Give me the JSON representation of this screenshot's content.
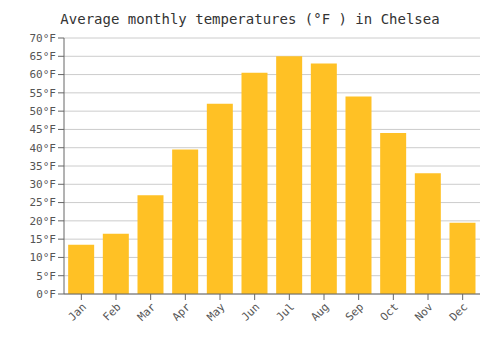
{
  "chart_data": {
    "type": "bar",
    "title": "Average monthly temperatures (°F ) in Chelsea",
    "categories": [
      "Jan",
      "Feb",
      "Mar",
      "Apr",
      "May",
      "Jun",
      "Jul",
      "Aug",
      "Sep",
      "Oct",
      "Nov",
      "Dec"
    ],
    "values": [
      13.5,
      16.5,
      27,
      39.5,
      52,
      60.5,
      65,
      63,
      54,
      44,
      33,
      19.5
    ],
    "color": "#FFC125",
    "ylim": [
      0,
      70
    ],
    "yticks": [
      {
        "value": 0,
        "label": "0°F"
      },
      {
        "value": 5,
        "label": "5°F"
      },
      {
        "value": 10,
        "label": "10°F"
      },
      {
        "value": 15,
        "label": "15°F"
      },
      {
        "value": 20,
        "label": "20°F"
      },
      {
        "value": 25,
        "label": "25°F"
      },
      {
        "value": 30,
        "label": "30°F"
      },
      {
        "value": 35,
        "label": "35°F"
      },
      {
        "value": 40,
        "label": "40°F"
      },
      {
        "value": 45,
        "label": "45°F"
      },
      {
        "value": 50,
        "label": "50°F"
      },
      {
        "value": 55,
        "label": "55°F"
      },
      {
        "value": 60,
        "label": "60°F"
      },
      {
        "value": 65,
        "label": "65°F"
      },
      {
        "value": 70,
        "label": "70°F"
      }
    ],
    "grid": true
  }
}
